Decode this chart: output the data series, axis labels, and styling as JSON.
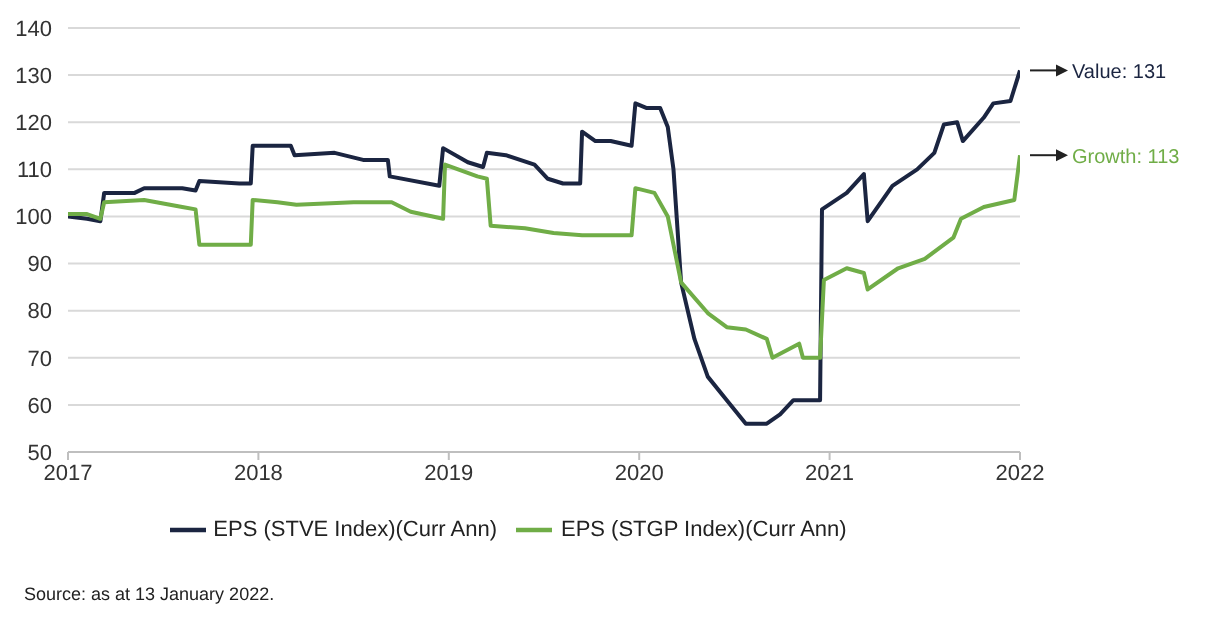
{
  "chart_data": {
    "type": "line",
    "xlim": [
      2017,
      2022
    ],
    "xticks": [
      2017,
      2018,
      2019,
      2020,
      2021,
      2022
    ],
    "ylim": [
      50,
      140
    ],
    "yticks": [
      50,
      60,
      70,
      80,
      90,
      100,
      110,
      120,
      130,
      140
    ],
    "grid": "y",
    "legend": "bottom",
    "marker": "none",
    "line_style": "solid",
    "series": [
      {
        "name": "EPS (STVE Index)(Curr Ann)",
        "color": "#1b2541",
        "x": [
          2017,
          2017.1,
          2017.17,
          2017.19,
          2017.35,
          2017.4,
          2017.6,
          2017.67,
          2017.69,
          2017.9,
          2017.96,
          2017.97,
          2018.17,
          2018.19,
          2018.4,
          2018.55,
          2018.68,
          2018.69,
          2018.95,
          2018.97,
          2019.1,
          2019.18,
          2019.2,
          2019.3,
          2019.45,
          2019.52,
          2019.6,
          2019.69,
          2019.7,
          2019.77,
          2019.85,
          2019.96,
          2019.98,
          2020.04,
          2020.11,
          2020.15,
          2020.18,
          2020.22,
          2020.29,
          2020.36,
          2020.46,
          2020.56,
          2020.67,
          2020.74,
          2020.81,
          2020.95,
          2020.96,
          2021.09,
          2021.18,
          2021.2,
          2021.33,
          2021.46,
          2021.55,
          2021.6,
          2021.67,
          2021.7,
          2021.81,
          2021.86,
          2021.95,
          2022
        ],
        "values": [
          100,
          99.5,
          99,
          105,
          105,
          106,
          106,
          105.5,
          107.5,
          107,
          107,
          115,
          115,
          113,
          113.5,
          112,
          112,
          108.5,
          106.5,
          114.5,
          111.5,
          110.5,
          113.5,
          113,
          111,
          108,
          107,
          107,
          118,
          116,
          116,
          115,
          124,
          123,
          123,
          119,
          110,
          86,
          74,
          66,
          61,
          56,
          56,
          58,
          61,
          61,
          101.5,
          105,
          109,
          99,
          106.5,
          110,
          113.5,
          119.5,
          120,
          116,
          121,
          124,
          124.5,
          131
        ]
      },
      {
        "name": "EPS (STGP Index)(Curr Ann)",
        "color": "#70ad47",
        "x": [
          2017,
          2017.1,
          2017.17,
          2017.19,
          2017.4,
          2017.6,
          2017.67,
          2017.69,
          2017.96,
          2017.97,
          2018.1,
          2018.2,
          2018.5,
          2018.7,
          2018.8,
          2018.97,
          2018.98,
          2019.15,
          2019.2,
          2019.22,
          2019.4,
          2019.55,
          2019.7,
          2019.96,
          2019.98,
          2020.08,
          2020.15,
          2020.22,
          2020.36,
          2020.46,
          2020.56,
          2020.67,
          2020.7,
          2020.84,
          2020.86,
          2020.95,
          2020.97,
          2021.09,
          2021.18,
          2021.2,
          2021.36,
          2021.5,
          2021.65,
          2021.69,
          2021.81,
          2021.97,
          2022
        ],
        "values": [
          100.5,
          100.5,
          99.5,
          103,
          103.5,
          102,
          101.5,
          94,
          94,
          103.5,
          103,
          102.5,
          103,
          103,
          101,
          99.5,
          111,
          108.5,
          108,
          98,
          97.5,
          96.5,
          96,
          96,
          106,
          105,
          100,
          86,
          79.5,
          76.5,
          76,
          74,
          70,
          73,
          70,
          70,
          86.5,
          89,
          88,
          84.5,
          89,
          91,
          95.5,
          99.5,
          102,
          103.5,
          113
        ]
      }
    ],
    "annotations": [
      {
        "text": "Value: 131",
        "x": 2022,
        "y": 131
      },
      {
        "text": "Growth: 113",
        "x": 2022,
        "y": 113
      },
      "Source: as at 13 January 2022."
    ]
  }
}
